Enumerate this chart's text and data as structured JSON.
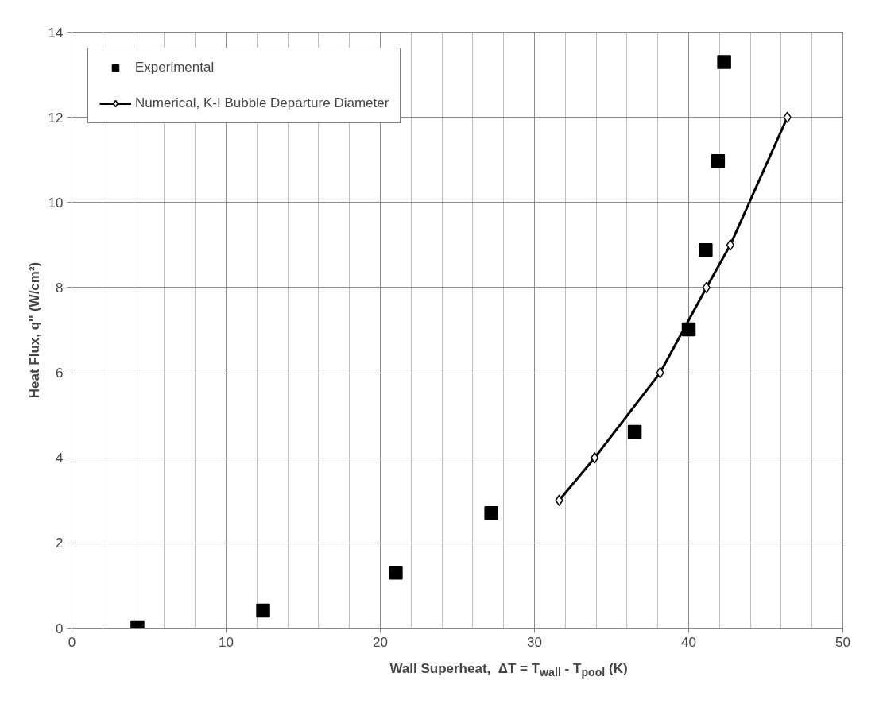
{
  "chart_data": {
    "type": "scatter",
    "xlabel": "Wall Superheat,  ΔT = T$_{wall}$ - T$_{pool}$ (K)",
    "ylabel": "Heat Flux, q'' (W/cm²)",
    "xlim": [
      0,
      50
    ],
    "xticks": [
      0,
      10,
      20,
      30,
      40,
      50
    ],
    "ylim": [
      0,
      14
    ],
    "yticks": [
      0,
      2,
      4,
      6,
      8,
      10,
      12,
      14
    ],
    "grid": true,
    "legend": "top left",
    "series": [
      {
        "name": "Experimental",
        "marker": "square",
        "color": "#000000",
        "x": [
          4.25,
          12.4,
          21.0,
          27.2,
          36.5,
          40.0,
          41.1,
          41.9,
          42.3
        ],
        "values": [
          0.02,
          0.41,
          1.3,
          2.7,
          4.61,
          7.02,
          8.88,
          10.97,
          13.3
        ]
      },
      {
        "name": "Numerical, K-I Bubble Departure Diameter",
        "type": "line",
        "marker": "diamond",
        "color": "#000000",
        "x": [
          31.6,
          33.9,
          38.15,
          41.15,
          42.7,
          46.4
        ],
        "values": [
          3,
          4,
          6,
          8,
          9,
          12
        ]
      }
    ]
  }
}
